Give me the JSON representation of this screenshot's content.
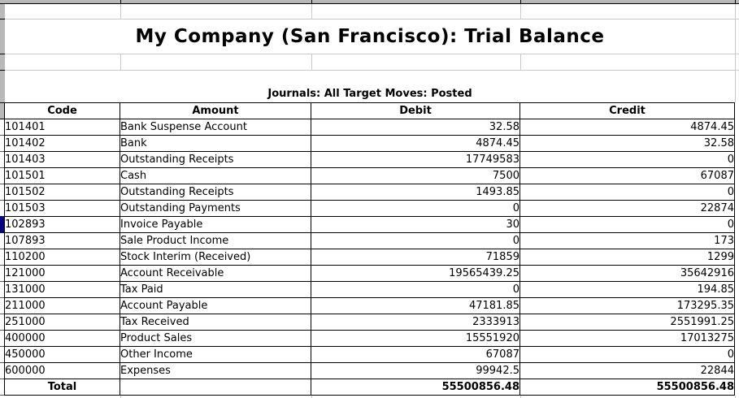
{
  "report": {
    "title": "My Company (San Francisco): Trial Balance",
    "filters": "Journals: All  Target Moves: Posted"
  },
  "table": {
    "columns": [
      "Code",
      "Amount",
      "Debit",
      "Credit"
    ],
    "rows": [
      {
        "code": "101401",
        "amount": "Bank Suspense Account",
        "debit": "32.58",
        "credit": "4874.45"
      },
      {
        "code": "101402",
        "amount": "Bank",
        "debit": "4874.45",
        "credit": "32.58"
      },
      {
        "code": "101403",
        "amount": "Outstanding Receipts",
        "debit": "17749583",
        "credit": "0"
      },
      {
        "code": "101501",
        "amount": "Cash",
        "debit": "7500",
        "credit": "67087"
      },
      {
        "code": "101502",
        "amount": "Outstanding Receipts",
        "debit": "1493.85",
        "credit": "0"
      },
      {
        "code": "101503",
        "amount": "Outstanding Payments",
        "debit": "0",
        "credit": "22874"
      },
      {
        "code": "102893",
        "amount": "Invoice Payable",
        "debit": "30",
        "credit": "0"
      },
      {
        "code": "107893",
        "amount": "Sale Product Income",
        "debit": "0",
        "credit": "173"
      },
      {
        "code": "110200",
        "amount": "Stock Interim (Received)",
        "debit": "71859",
        "credit": "1299"
      },
      {
        "code": "121000",
        "amount": "Account Receivable",
        "debit": "19565439.25",
        "credit": "35642916"
      },
      {
        "code": "131000",
        "amount": "Tax Paid",
        "debit": "0",
        "credit": "194.85"
      },
      {
        "code": "211000",
        "amount": "Account Payable",
        "debit": "47181.85",
        "credit": "173295.35"
      },
      {
        "code": "251000",
        "amount": "Tax Received",
        "debit": "2333913",
        "credit": "2551991.25"
      },
      {
        "code": "400000",
        "amount": "Product Sales",
        "debit": "15551920",
        "credit": "17013275"
      },
      {
        "code": "450000",
        "amount": "Other Income",
        "debit": "67087",
        "credit": "0"
      },
      {
        "code": "600000",
        "amount": "Expenses",
        "debit": "99942.5",
        "credit": "22844"
      }
    ],
    "total": {
      "label": "Total",
      "debit": "55500856.48",
      "credit": "55500856.48"
    }
  },
  "colors": {
    "selection": "#000080",
    "header_strip": "#b9b9b9",
    "gridline": "#c9c9c9",
    "table_border": "#000000"
  }
}
